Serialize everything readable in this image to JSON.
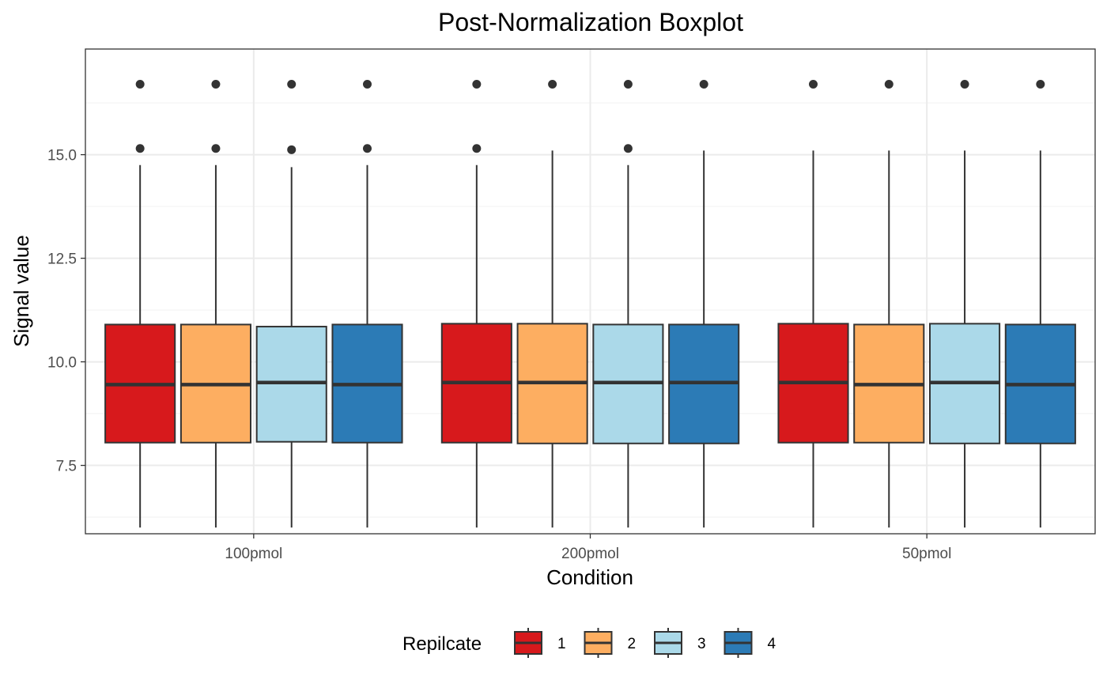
{
  "chart_data": {
    "type": "boxplot",
    "title": "Post-Normalization Boxplot",
    "xlabel": "Condition",
    "ylabel": "Signal value",
    "categories": [
      "100pmol",
      "200pmol",
      "50pmol"
    ],
    "ylim": [
      5.85,
      17.55
    ],
    "yticks": [
      7.5,
      10.0,
      12.5,
      15.0
    ],
    "ytick_labels": [
      "7.5",
      "10.0",
      "12.5",
      "15.0"
    ],
    "grid": true,
    "legend": {
      "title": "Repilcate",
      "placement": "bottom",
      "entries": [
        "1",
        "2",
        "3",
        "4"
      ]
    },
    "colors": [
      "#d7191c",
      "#fdae61",
      "#abd9e9",
      "#2c7bb6"
    ],
    "series": [
      {
        "name": "1",
        "boxes": [
          {
            "whisker_low": 6.0,
            "q1": 8.05,
            "median": 9.45,
            "q3": 10.9,
            "whisker_high": 14.75,
            "outliers": [
              15.15,
              16.7
            ]
          },
          {
            "whisker_low": 6.0,
            "q1": 8.05,
            "median": 9.5,
            "q3": 10.92,
            "whisker_high": 14.75,
            "outliers": [
              15.15,
              16.7
            ]
          },
          {
            "whisker_low": 6.0,
            "q1": 8.05,
            "median": 9.5,
            "q3": 10.92,
            "whisker_high": 15.1,
            "outliers": [
              16.7
            ]
          }
        ]
      },
      {
        "name": "2",
        "boxes": [
          {
            "whisker_low": 6.0,
            "q1": 8.05,
            "median": 9.45,
            "q3": 10.9,
            "whisker_high": 14.75,
            "outliers": [
              15.15,
              16.7
            ]
          },
          {
            "whisker_low": 6.0,
            "q1": 8.03,
            "median": 9.5,
            "q3": 10.92,
            "whisker_high": 15.1,
            "outliers": [
              16.7
            ]
          },
          {
            "whisker_low": 6.0,
            "q1": 8.05,
            "median": 9.45,
            "q3": 10.9,
            "whisker_high": 15.1,
            "outliers": [
              16.7
            ]
          }
        ]
      },
      {
        "name": "3",
        "boxes": [
          {
            "whisker_low": 6.0,
            "q1": 8.07,
            "median": 9.5,
            "q3": 10.85,
            "whisker_high": 14.7,
            "outliers": [
              15.12,
              16.7
            ]
          },
          {
            "whisker_low": 6.0,
            "q1": 8.03,
            "median": 9.5,
            "q3": 10.9,
            "whisker_high": 14.75,
            "outliers": [
              15.15,
              16.7
            ]
          },
          {
            "whisker_low": 6.0,
            "q1": 8.03,
            "median": 9.5,
            "q3": 10.92,
            "whisker_high": 15.1,
            "outliers": [
              16.7
            ]
          }
        ]
      },
      {
        "name": "4",
        "boxes": [
          {
            "whisker_low": 6.0,
            "q1": 8.05,
            "median": 9.45,
            "q3": 10.9,
            "whisker_high": 14.75,
            "outliers": [
              15.15,
              16.7
            ]
          },
          {
            "whisker_low": 6.0,
            "q1": 8.03,
            "median": 9.5,
            "q3": 10.9,
            "whisker_high": 15.1,
            "outliers": [
              16.7
            ]
          },
          {
            "whisker_low": 6.0,
            "q1": 8.03,
            "median": 9.45,
            "q3": 10.9,
            "whisker_high": 15.1,
            "outliers": [
              16.7
            ]
          }
        ]
      }
    ]
  }
}
